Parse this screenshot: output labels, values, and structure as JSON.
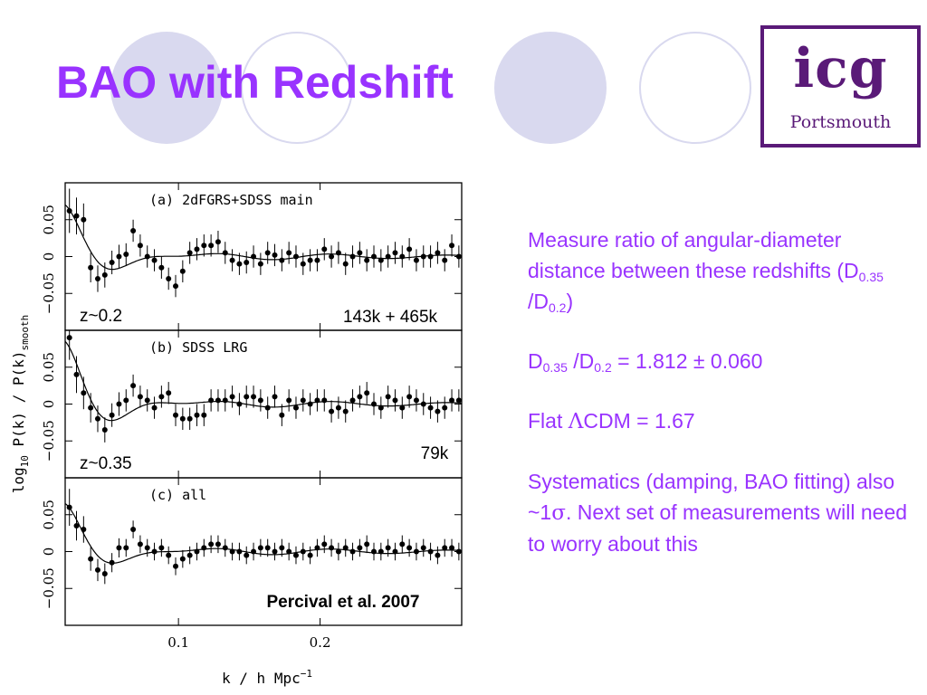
{
  "slide": {
    "title": "BAO with Redshift",
    "colors": {
      "title": "#9933ff",
      "text": "#9933ff",
      "deco_circle": "#d9d9ef",
      "logo": "#5a1a78"
    }
  },
  "logo": {
    "main": "icg",
    "sub": "Portsmouth"
  },
  "side_text": {
    "p1_a": "Measure ratio of angular-diameter distance between these redshifts (D",
    "p1_sub1": "0.35",
    "p1_b": " /D",
    "p1_sub2": "0.2",
    "p1_c": ")",
    "p2_a": "D",
    "p2_sub1": "0.35",
    "p2_b": " /D",
    "p2_sub2": "0.2",
    "p2_c": " = 1.812 ± 0.060",
    "p3_a": "Flat ",
    "p3_lambda": "Λ",
    "p3_b": "CDM = 1.67",
    "p4_a": "Systematics (damping, BAO fitting) also ~1",
    "p4_sigma": "σ",
    "p4_b": ". Next set of measurements will need to worry about this"
  },
  "chart_data": {
    "type": "scatter",
    "xlabel": "k / h Mpc",
    "xlabel_exp": "−1",
    "ylabel": "log",
    "ylabel_sub": "10",
    "ylabel_rest": " P(k) / P(k)",
    "ylabel_sub2": "smooth",
    "xlim": [
      0.02,
      0.3
    ],
    "xticks": [
      "0.1",
      "0.2"
    ],
    "xtick_values": [
      0.1,
      0.2
    ],
    "ylim": [
      -0.1,
      0.1
    ],
    "yticks": [
      "−0.05",
      "0",
      "0.05"
    ],
    "ytick_values": [
      -0.05,
      0,
      0.05
    ],
    "grid": false,
    "panels": [
      {
        "label": "(a) 2dFGRS+SDSS main",
        "redshift_label": "z~0.2",
        "count_label": "143k + 465k",
        "x": [
          0.023,
          0.028,
          0.033,
          0.038,
          0.043,
          0.048,
          0.053,
          0.058,
          0.063,
          0.068,
          0.073,
          0.078,
          0.083,
          0.088,
          0.093,
          0.098,
          0.103,
          0.108,
          0.113,
          0.118,
          0.123,
          0.128,
          0.133,
          0.138,
          0.143,
          0.148,
          0.153,
          0.158,
          0.163,
          0.168,
          0.173,
          0.178,
          0.183,
          0.188,
          0.193,
          0.198,
          0.203,
          0.208,
          0.213,
          0.218,
          0.223,
          0.228,
          0.233,
          0.238,
          0.243,
          0.248,
          0.253,
          0.258,
          0.263,
          0.268,
          0.273,
          0.278,
          0.283,
          0.288,
          0.293,
          0.298
        ],
        "y": [
          0.062,
          0.055,
          0.05,
          -0.015,
          -0.03,
          -0.025,
          -0.008,
          0.0,
          0.003,
          0.035,
          0.015,
          0.0,
          -0.005,
          -0.015,
          -0.03,
          -0.04,
          -0.02,
          0.005,
          0.01,
          0.015,
          0.015,
          0.02,
          0.005,
          -0.005,
          -0.01,
          -0.008,
          0.0,
          -0.01,
          0.005,
          0.002,
          -0.005,
          0.005,
          0.0,
          -0.01,
          -0.005,
          -0.005,
          0.01,
          0.0,
          0.005,
          -0.01,
          0.0,
          0.005,
          -0.005,
          0.0,
          -0.005,
          0.0,
          0.005,
          0.0,
          0.01,
          -0.005,
          0.0,
          0.0,
          0.005,
          -0.005,
          0.015,
          0.0
        ],
        "err": [
          0.03,
          0.025,
          0.022,
          0.02,
          0.018,
          0.017,
          0.016,
          0.016,
          0.015,
          0.015,
          0.015,
          0.015,
          0.015,
          0.015,
          0.015,
          0.015,
          0.015,
          0.015,
          0.015,
          0.015,
          0.015,
          0.015,
          0.015,
          0.015,
          0.015,
          0.015,
          0.015,
          0.015,
          0.015,
          0.015,
          0.015,
          0.015,
          0.015,
          0.015,
          0.015,
          0.015,
          0.015,
          0.015,
          0.015,
          0.015,
          0.015,
          0.015,
          0.015,
          0.015,
          0.015,
          0.015,
          0.015,
          0.015,
          0.015,
          0.015,
          0.015,
          0.015,
          0.015,
          0.015,
          0.015,
          0.015
        ]
      },
      {
        "label": "(b) SDSS LRG",
        "redshift_label": "z~0.35",
        "count_label": "79k",
        "x": [
          0.023,
          0.028,
          0.033,
          0.038,
          0.043,
          0.048,
          0.053,
          0.058,
          0.063,
          0.068,
          0.073,
          0.078,
          0.083,
          0.088,
          0.093,
          0.098,
          0.103,
          0.108,
          0.113,
          0.118,
          0.123,
          0.128,
          0.133,
          0.138,
          0.143,
          0.148,
          0.153,
          0.158,
          0.163,
          0.168,
          0.173,
          0.178,
          0.183,
          0.188,
          0.193,
          0.198,
          0.203,
          0.208,
          0.213,
          0.218,
          0.223,
          0.228,
          0.233,
          0.238,
          0.243,
          0.248,
          0.253,
          0.258,
          0.263,
          0.268,
          0.273,
          0.278,
          0.283,
          0.288,
          0.293,
          0.298
        ],
        "y": [
          0.09,
          0.04,
          0.015,
          -0.005,
          -0.02,
          -0.035,
          -0.015,
          0.0,
          0.005,
          0.025,
          0.01,
          0.005,
          -0.005,
          0.01,
          0.015,
          -0.015,
          -0.02,
          -0.02,
          -0.015,
          -0.015,
          0.005,
          0.005,
          0.005,
          0.01,
          0.0,
          0.01,
          0.01,
          0.005,
          -0.005,
          0.01,
          -0.015,
          0.005,
          -0.005,
          0.005,
          0.0,
          0.005,
          0.005,
          -0.01,
          -0.005,
          -0.01,
          0.005,
          0.01,
          0.015,
          0.0,
          -0.005,
          0.01,
          0.005,
          -0.005,
          0.01,
          0.005,
          0.0,
          -0.005,
          -0.01,
          -0.005,
          0.005,
          0.005
        ],
        "err": [
          0.03,
          0.025,
          0.022,
          0.02,
          0.018,
          0.017,
          0.016,
          0.016,
          0.015,
          0.015,
          0.015,
          0.015,
          0.015,
          0.015,
          0.015,
          0.015,
          0.015,
          0.015,
          0.015,
          0.015,
          0.015,
          0.015,
          0.015,
          0.015,
          0.015,
          0.015,
          0.015,
          0.015,
          0.015,
          0.015,
          0.015,
          0.015,
          0.015,
          0.015,
          0.015,
          0.015,
          0.015,
          0.015,
          0.015,
          0.015,
          0.015,
          0.015,
          0.015,
          0.015,
          0.015,
          0.015,
          0.015,
          0.015,
          0.015,
          0.015,
          0.015,
          0.015,
          0.015,
          0.015,
          0.015,
          0.015
        ]
      },
      {
        "label": "(c) all",
        "count_label": "Percival et al. 2007",
        "x": [
          0.023,
          0.028,
          0.033,
          0.038,
          0.043,
          0.048,
          0.053,
          0.058,
          0.063,
          0.068,
          0.073,
          0.078,
          0.083,
          0.088,
          0.093,
          0.098,
          0.103,
          0.108,
          0.113,
          0.118,
          0.123,
          0.128,
          0.133,
          0.138,
          0.143,
          0.148,
          0.153,
          0.158,
          0.163,
          0.168,
          0.173,
          0.178,
          0.183,
          0.188,
          0.193,
          0.198,
          0.203,
          0.208,
          0.213,
          0.218,
          0.223,
          0.228,
          0.233,
          0.238,
          0.243,
          0.248,
          0.253,
          0.258,
          0.263,
          0.268,
          0.273,
          0.278,
          0.283,
          0.288,
          0.293,
          0.298
        ],
        "y": [
          0.06,
          0.035,
          0.03,
          -0.01,
          -0.025,
          -0.03,
          -0.015,
          0.005,
          0.005,
          0.03,
          0.01,
          0.005,
          0.0,
          0.005,
          -0.005,
          -0.02,
          -0.01,
          -0.005,
          0.0,
          0.005,
          0.01,
          0.01,
          0.005,
          0.0,
          0.0,
          -0.005,
          0.0,
          0.005,
          0.005,
          0.0,
          0.005,
          0.0,
          -0.005,
          0.0,
          -0.005,
          0.005,
          0.01,
          0.005,
          0.0,
          0.005,
          0.0,
          0.005,
          0.01,
          0.0,
          0.0,
          0.005,
          0.0,
          0.01,
          0.005,
          0.0,
          0.005,
          0.0,
          -0.005,
          0.005,
          0.005,
          0.0
        ],
        "err": [
          0.025,
          0.02,
          0.018,
          0.016,
          0.015,
          0.014,
          0.013,
          0.013,
          0.012,
          0.012,
          0.012,
          0.012,
          0.012,
          0.012,
          0.012,
          0.012,
          0.012,
          0.012,
          0.012,
          0.012,
          0.012,
          0.012,
          0.012,
          0.012,
          0.012,
          0.012,
          0.012,
          0.012,
          0.012,
          0.012,
          0.012,
          0.012,
          0.012,
          0.012,
          0.012,
          0.012,
          0.012,
          0.012,
          0.012,
          0.012,
          0.012,
          0.012,
          0.012,
          0.012,
          0.012,
          0.012,
          0.012,
          0.012,
          0.012,
          0.012,
          0.012,
          0.012,
          0.012,
          0.012,
          0.012,
          0.012
        ]
      }
    ]
  }
}
